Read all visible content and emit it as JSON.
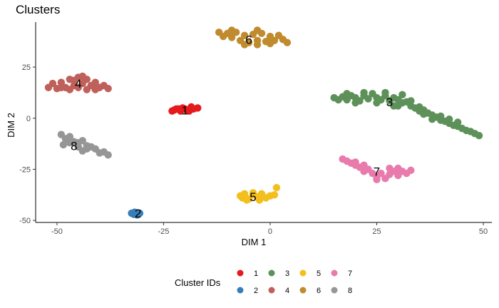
{
  "chart_data": {
    "type": "scatter",
    "title": "Clusters",
    "xlabel": "DIM 1",
    "ylabel": "DIM 2",
    "xlim": [
      -55,
      52
    ],
    "ylim": [
      -51,
      47
    ],
    "x_ticks": [
      -50,
      -25,
      0,
      25,
      50
    ],
    "y_ticks": [
      -50,
      -25,
      0,
      25
    ],
    "grid": false,
    "legend": {
      "title": "Cluster IDs",
      "position": "bottom",
      "entries": [
        "1",
        "2",
        "3",
        "4",
        "5",
        "6",
        "7",
        "8"
      ]
    },
    "series": [
      {
        "name": "1",
        "color": "#E41A1C",
        "label_at": [
          -20,
          4
        ],
        "points": [
          [
            -23,
            3.5
          ],
          [
            -22,
            4.5
          ],
          [
            -21,
            3.5
          ],
          [
            -20,
            4.5
          ],
          [
            -19,
            3.5
          ],
          [
            -18,
            4.5
          ],
          [
            -17,
            5
          ],
          [
            -22.5,
            4
          ],
          [
            -20.5,
            5
          ],
          [
            -18.5,
            5.5
          ],
          [
            -19.5,
            4
          ],
          [
            -21.5,
            4.5
          ]
        ]
      },
      {
        "name": "2",
        "color": "#377EB8",
        "label_at": [
          -31,
          -46.5
        ],
        "points": [
          [
            -32.5,
            -46.5
          ],
          [
            -32,
            -47
          ],
          [
            -31.5,
            -46.3
          ],
          [
            -31,
            -47
          ],
          [
            -30.6,
            -46.5
          ],
          [
            -31.8,
            -46
          ],
          [
            -31.2,
            -47.3
          ]
        ]
      },
      {
        "name": "3",
        "color": "#5E915A",
        "label_at": [
          28,
          8
        ],
        "points": [
          [
            15,
            10
          ],
          [
            16,
            9
          ],
          [
            17,
            10.5
          ],
          [
            18,
            9
          ],
          [
            19,
            11
          ],
          [
            20,
            10
          ],
          [
            21,
            8.5
          ],
          [
            22,
            11
          ],
          [
            23,
            9.5
          ],
          [
            24,
            12
          ],
          [
            25,
            10
          ],
          [
            26,
            9
          ],
          [
            27,
            11
          ],
          [
            28,
            8.5
          ],
          [
            29,
            10
          ],
          [
            30,
            9
          ],
          [
            31,
            7.5
          ],
          [
            32,
            8
          ],
          [
            33,
            6
          ],
          [
            34,
            5
          ],
          [
            35,
            3.5
          ],
          [
            36,
            4
          ],
          [
            37,
            2.5
          ],
          [
            38,
            1.5
          ],
          [
            39,
            0.5
          ],
          [
            40,
            -1
          ],
          [
            41,
            -1.5
          ],
          [
            42,
            -2.5
          ],
          [
            43,
            -3.5
          ],
          [
            44,
            -4
          ],
          [
            45,
            -5
          ],
          [
            46,
            -6
          ],
          [
            47,
            -6.5
          ],
          [
            48,
            -7.5
          ],
          [
            49,
            -8.5
          ],
          [
            20,
            7.5
          ],
          [
            25,
            7.5
          ],
          [
            30,
            6
          ],
          [
            22,
            12.5
          ],
          [
            27,
            12.5
          ],
          [
            33,
            8.5
          ],
          [
            36,
            2
          ],
          [
            40,
            1
          ],
          [
            44,
            -2
          ],
          [
            31,
            11.5
          ],
          [
            18,
            12
          ],
          [
            35,
            5.5
          ],
          [
            29,
            6
          ],
          [
            38,
            -0.5
          ],
          [
            42,
            -0.5
          ]
        ]
      },
      {
        "name": "4",
        "color": "#C0605A",
        "label_at": [
          -45,
          17
        ],
        "points": [
          [
            -52,
            15
          ],
          [
            -51,
            17
          ],
          [
            -50,
            14.5
          ],
          [
            -49,
            17.5
          ],
          [
            -48,
            15
          ],
          [
            -47,
            19
          ],
          [
            -46,
            16
          ],
          [
            -45,
            20
          ],
          [
            -44,
            17
          ],
          [
            -43,
            19
          ],
          [
            -42,
            16
          ],
          [
            -41,
            17.5
          ],
          [
            -40,
            15
          ],
          [
            -39,
            16
          ],
          [
            -38,
            14.5
          ],
          [
            -47,
            14
          ],
          [
            -43,
            14
          ],
          [
            -45,
            15
          ],
          [
            -49,
            15
          ],
          [
            -41,
            14
          ],
          [
            -44,
            20.5
          ],
          [
            -46,
            18.5
          ]
        ]
      },
      {
        "name": "5",
        "color": "#F3BF1C",
        "label_at": [
          -4,
          -38.5
        ],
        "points": [
          [
            -7,
            -38
          ],
          [
            -6,
            -37
          ],
          [
            -5,
            -39.5
          ],
          [
            -4,
            -37.5
          ],
          [
            -3,
            -38.5
          ],
          [
            -2,
            -37
          ],
          [
            -1,
            -39
          ],
          [
            0,
            -38
          ],
          [
            -5.5,
            -40
          ],
          [
            -2.5,
            -40
          ],
          [
            -4,
            -36.5
          ],
          [
            -6.5,
            -39
          ],
          [
            1,
            -37.5
          ],
          [
            1.5,
            -34
          ]
        ]
      },
      {
        "name": "6",
        "color": "#C08B2E",
        "label_at": [
          -5,
          38.5
        ],
        "points": [
          [
            -12,
            42
          ],
          [
            -11,
            40
          ],
          [
            -10,
            41.5
          ],
          [
            -9,
            39.5
          ],
          [
            -8,
            42
          ],
          [
            -7,
            38
          ],
          [
            -6,
            40.5
          ],
          [
            -5,
            37
          ],
          [
            -4,
            41
          ],
          [
            -3,
            38
          ],
          [
            -2,
            41.5
          ],
          [
            -1,
            37.5
          ],
          [
            0,
            40
          ],
          [
            1,
            38
          ],
          [
            2,
            40.5
          ],
          [
            3,
            38.5
          ],
          [
            4,
            37
          ],
          [
            -6,
            36
          ],
          [
            -3,
            36
          ],
          [
            0,
            36.5
          ],
          [
            -9,
            43
          ],
          [
            -3,
            43
          ]
        ]
      },
      {
        "name": "7",
        "color": "#E87BAC",
        "label_at": [
          25,
          -26
        ],
        "points": [
          [
            17,
            -20
          ],
          [
            18,
            -21
          ],
          [
            19,
            -22
          ],
          [
            20,
            -21.5
          ],
          [
            21,
            -24
          ],
          [
            22,
            -23
          ],
          [
            23,
            -25
          ],
          [
            24,
            -27
          ],
          [
            25,
            -28.5
          ],
          [
            26,
            -27
          ],
          [
            27,
            -29.5
          ],
          [
            28,
            -27.5
          ],
          [
            29,
            -26
          ],
          [
            30,
            -28
          ],
          [
            31,
            -26
          ],
          [
            32,
            -27
          ],
          [
            33,
            -25.5
          ],
          [
            25,
            -30
          ],
          [
            22,
            -26
          ],
          [
            20,
            -23
          ],
          [
            28,
            -24.5
          ],
          [
            30,
            -24.5
          ]
        ]
      },
      {
        "name": "8",
        "color": "#969696",
        "label_at": [
          -46,
          -13.5
        ],
        "points": [
          [
            -49,
            -8
          ],
          [
            -48,
            -10
          ],
          [
            -47,
            -9
          ],
          [
            -46,
            -11.5
          ],
          [
            -45,
            -12
          ],
          [
            -44,
            -11
          ],
          [
            -43,
            -13.5
          ],
          [
            -42,
            -14
          ],
          [
            -41,
            -15
          ],
          [
            -40,
            -17
          ],
          [
            -39,
            -16.5
          ],
          [
            -38,
            -18
          ],
          [
            -47,
            -12
          ],
          [
            -45,
            -14
          ],
          [
            -48.5,
            -13
          ],
          [
            -43,
            -15
          ],
          [
            -44,
            -16
          ]
        ]
      }
    ]
  }
}
